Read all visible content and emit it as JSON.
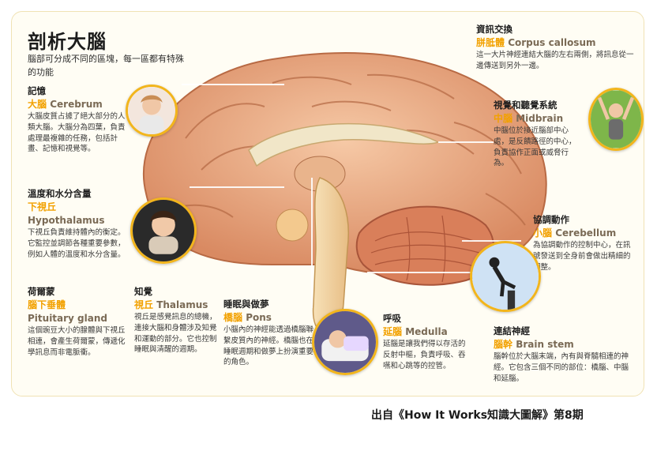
{
  "title": "剖析大腦",
  "subtitle": "腦部可分成不同的區塊，每一區都有特殊的功能",
  "source": "出自《How It Works知識大圖解》第8期",
  "colors": {
    "accent": "#f2a100",
    "border": "#f2b51c",
    "brain": "#e8a27a"
  },
  "sections": {
    "cerebrum": {
      "heading": "記憶",
      "name_zh": "大腦",
      "name_en": "Cerebrum",
      "desc": "大腦皮質占據了絕大部分的人類大腦。大腦分為四葉，負責處理最複雜的任務，包括計畫、記憶和視覺等。"
    },
    "hypothalamus": {
      "heading": "溫度和水分含量",
      "name_zh": "下視丘",
      "name_en": "Hypothalamus",
      "desc": "下視丘負責維持體內的衡定。它監控並調節各種重要參數，例如人體的溫度和水分含量。"
    },
    "pituitary": {
      "heading": "荷爾蒙",
      "name_zh": "腦下垂體",
      "name_en": "Pituitary gland",
      "desc": "這個豌豆大小的腺體與下視丘相連，會產生荷爾蒙，傳遞化學訊息而非電脈衝。"
    },
    "thalamus": {
      "heading": "知覺",
      "name_zh": "視丘",
      "name_en": "Thalamus",
      "desc": "視丘是感覺訊息的總機，連接大腦和身體涉及知覺和運動的部分。它也控制睡眠與清醒的週期。"
    },
    "pons": {
      "heading": "睡眠與做夢",
      "name_zh": "橋腦",
      "name_en": "Pons",
      "desc": "小腦內的神經能透過橋腦聯繫皮質內的神經。橋腦也在睡眠週期和做夢上扮演重要的角色。"
    },
    "medulla": {
      "heading": "呼吸",
      "name_zh": "延腦",
      "name_en": "Medulla",
      "desc": "延腦是讓我們得以存活的反射中樞，負責呼吸、吞嚥和心跳等的控管。"
    },
    "brainstem": {
      "heading": "連結神經",
      "name_zh": "腦幹",
      "name_en": "Brain stem",
      "desc": "腦幹位於大腦末端，內有與脊髓相連的神經。它包含三個不同的部位：橋腦、中腦和延腦。"
    },
    "cerebellum": {
      "heading": "協調動作",
      "name_zh": "小腦",
      "name_en": "Cerebellum",
      "desc": "為協調動作的控制中心，在訊號發送到全身前會做出精細的調整。"
    },
    "midbrain": {
      "heading": "視覺和聽覺系統",
      "name_zh": "中腦",
      "name_en": "Midbrain",
      "desc": "中腦位於接近腦部中心處，是反饋路徑的中心，負責協作正面或威脅行為。"
    },
    "corpus": {
      "heading": "資訊交換",
      "name_zh": "胼胝體",
      "name_en": "Corpus callosum",
      "desc": "這一大片神經連結大腦的左右兩側，將訊息從一邊傳送到另外一邊。"
    }
  },
  "icons": {
    "photo_cerebrum": "thinking-woman-photo",
    "photo_hypothalamus": "woman-scarf-photo",
    "photo_midbrain": "cheering-woman-photo",
    "photo_cerebellum": "jumping-man-photo",
    "photo_pons": "sleeping-man-photo"
  }
}
